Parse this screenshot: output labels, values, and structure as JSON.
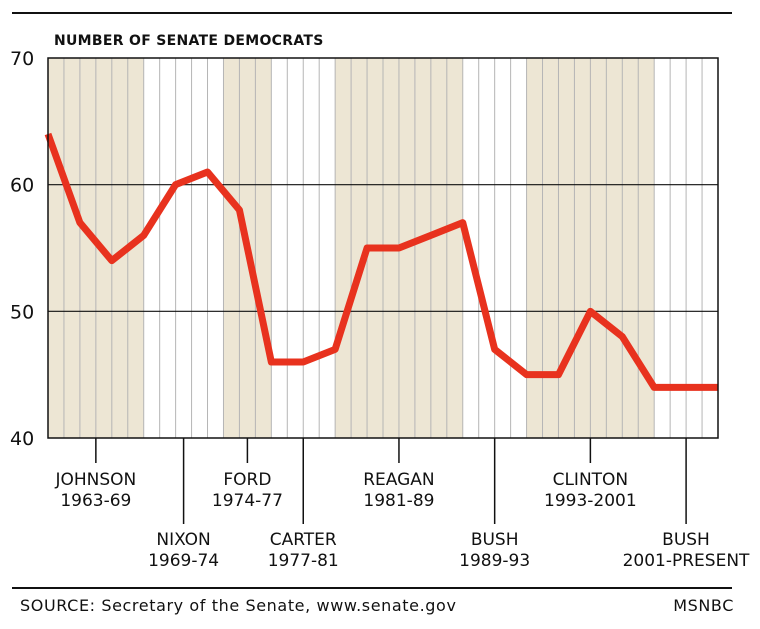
{
  "chart_data": {
    "type": "line",
    "title": "NUMBER OF SENATE DEMOCRATS",
    "ylim": [
      40,
      70
    ],
    "yticks": [
      "70",
      "60",
      "50",
      "40"
    ],
    "ytick_values": [
      70,
      60,
      50,
      40
    ],
    "xlim": [
      1963,
      2005
    ],
    "grid": true,
    "series": [
      {
        "color": "#e8321e",
        "x": [
          1963,
          1965,
          1967,
          1969,
          1971,
          1973,
          1975,
          1977,
          1979,
          1981,
          1983,
          1985,
          1987,
          1989,
          1991,
          1993,
          1995,
          1997,
          1999,
          2001,
          2003,
          2005
        ],
        "values": [
          64,
          57,
          54,
          56,
          60,
          61,
          58,
          46,
          46,
          47,
          55,
          55,
          56,
          57,
          47,
          45,
          45,
          50,
          48,
          44,
          44,
          44
        ]
      }
    ],
    "administrations": [
      {
        "name": "JOHNSON",
        "years": "1963-69",
        "start": 1963,
        "end": 1969,
        "shaded": true,
        "label_row": "top"
      },
      {
        "name": "NIXON",
        "years": "1969-74",
        "start": 1969,
        "end": 1974,
        "shaded": false,
        "label_row": "bottom"
      },
      {
        "name": "FORD",
        "years": "1974-77",
        "start": 1974,
        "end": 1977,
        "shaded": true,
        "label_row": "top"
      },
      {
        "name": "CARTER",
        "years": "1977-81",
        "start": 1977,
        "end": 1981,
        "shaded": false,
        "label_row": "bottom"
      },
      {
        "name": "REAGAN",
        "years": "1981-89",
        "start": 1981,
        "end": 1989,
        "shaded": true,
        "label_row": "top"
      },
      {
        "name": "BUSH",
        "years": "1989-93",
        "start": 1989,
        "end": 1993,
        "shaded": false,
        "label_row": "bottom"
      },
      {
        "name": "CLINTON",
        "years": "1993-2001",
        "start": 1993,
        "end": 2001,
        "shaded": true,
        "label_row": "top"
      },
      {
        "name": "BUSH",
        "years": "2001-PRESENT",
        "start": 2001,
        "end": 2005,
        "shaded": false,
        "label_row": "bottom"
      }
    ],
    "colors": {
      "shade": "#ede6d4",
      "line": "#e8321e",
      "grid": "#b5b5b5",
      "frame": "#111111"
    }
  },
  "footer": {
    "source": "SOURCE: Secretary of the Senate, www.senate.gov",
    "credit": "MSNBC"
  }
}
